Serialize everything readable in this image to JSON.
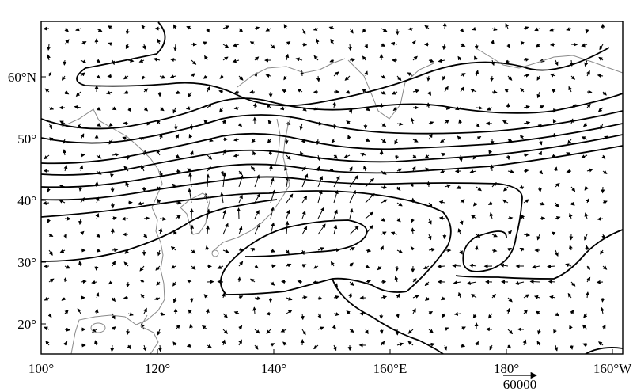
{
  "map": {
    "projection": "equirectangular",
    "lon_range": [
      100,
      200
    ],
    "lat_range": [
      15,
      69
    ],
    "x_ticks": [
      {
        "lon": 100,
        "label": "100°"
      },
      {
        "lon": 120,
        "label": "120°"
      },
      {
        "lon": 140,
        "label": "140°"
      },
      {
        "lon": 160,
        "label": "160°E"
      },
      {
        "lon": 180,
        "label": "180°"
      },
      {
        "lon": 200,
        "label": "160°W"
      }
    ],
    "y_ticks": [
      {
        "lat": 20,
        "label": "20°"
      },
      {
        "lat": 30,
        "label": "30°"
      },
      {
        "lat": 40,
        "label": "40°"
      },
      {
        "lat": 50,
        "label": "50°"
      },
      {
        "lat": 60,
        "label": "60°N"
      }
    ],
    "reference_vector": {
      "magnitude": 60000,
      "label": "60000"
    },
    "colors": {
      "contour": "#000000",
      "coastline": "#8a8a8a",
      "vector": "#000000"
    }
  }
}
